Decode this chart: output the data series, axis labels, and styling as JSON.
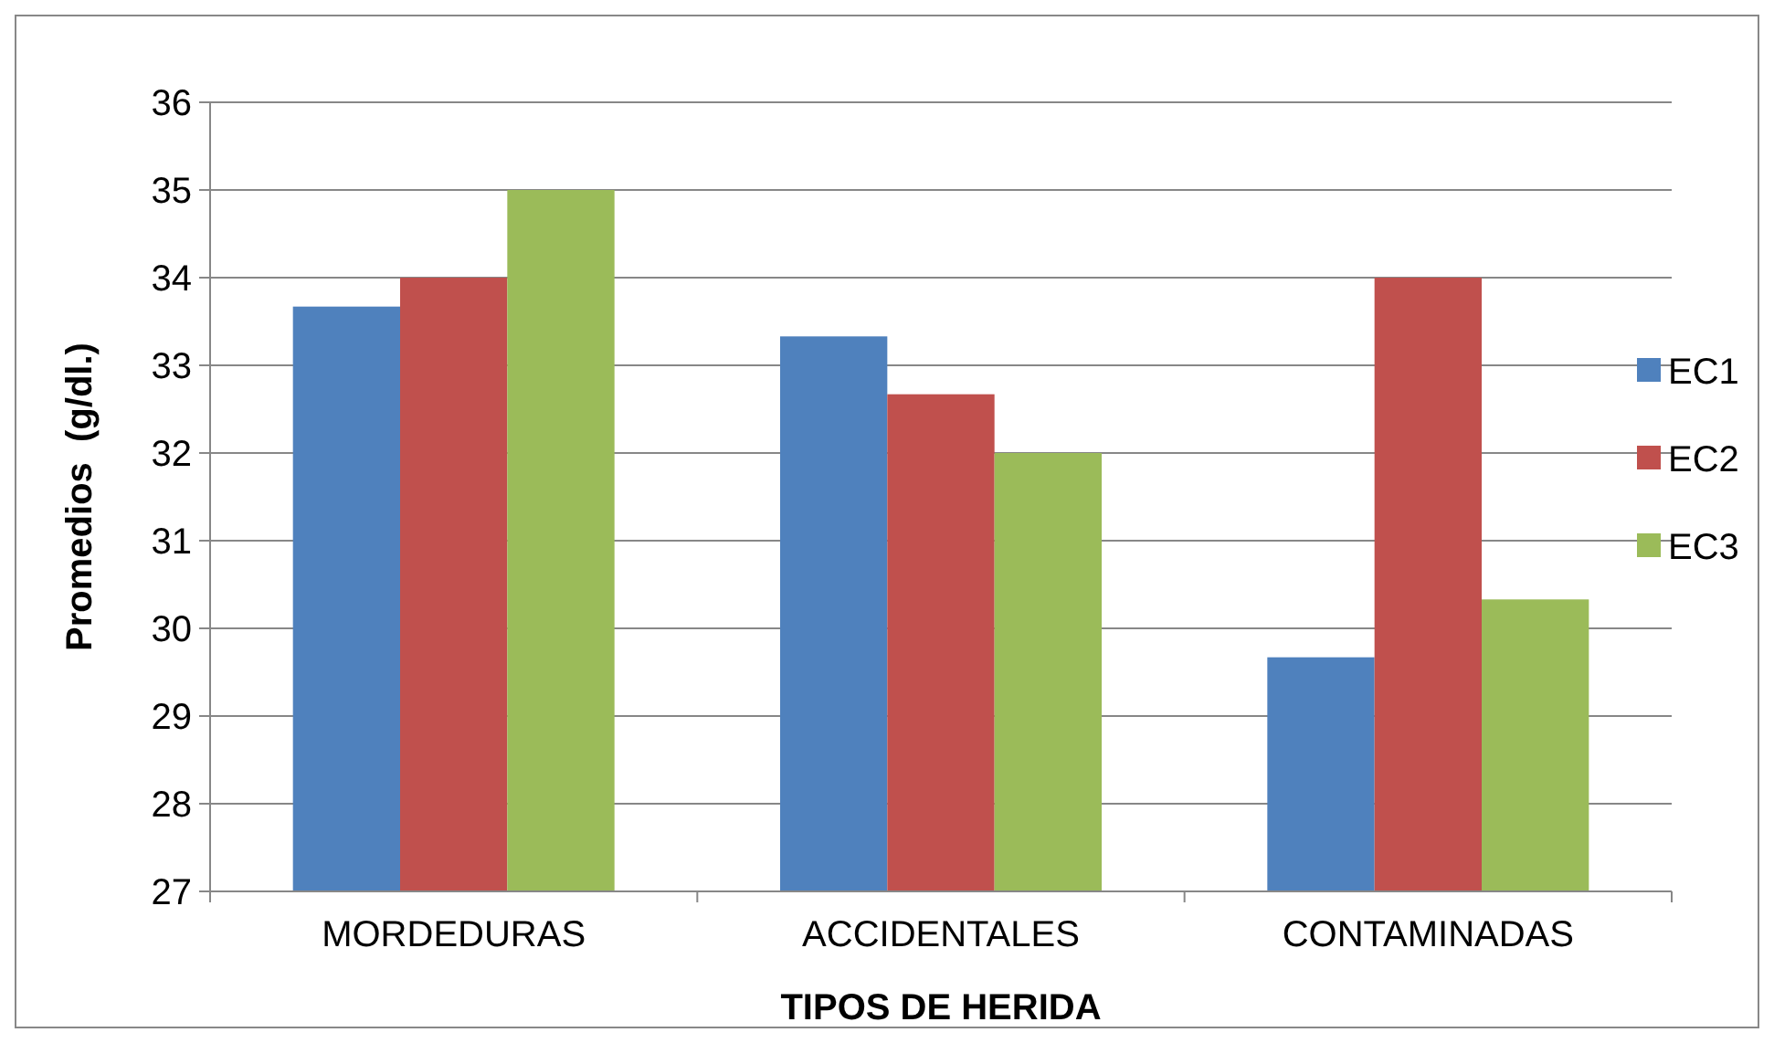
{
  "chart_data": {
    "type": "bar",
    "xlabel": "TIPOS DE HERIDA",
    "ylabel": "Promedios  (g/dl.)",
    "categories": [
      "MORDEDURAS",
      "ACCIDENTALES",
      "CONTAMINADAS"
    ],
    "series": [
      {
        "name": "EC1",
        "color": "#4f81bd",
        "values": [
          33.67,
          33.33,
          29.67
        ]
      },
      {
        "name": "EC2",
        "color": "#c0504d",
        "values": [
          34,
          32.67,
          34
        ]
      },
      {
        "name": "EC3",
        "color": "#9bbb59",
        "values": [
          35,
          32,
          30.33
        ]
      }
    ],
    "ylim": [
      27,
      36
    ],
    "yticks": [
      27,
      28,
      29,
      30,
      31,
      32,
      33,
      34,
      35,
      36
    ],
    "grid": "y",
    "legend": "right"
  }
}
